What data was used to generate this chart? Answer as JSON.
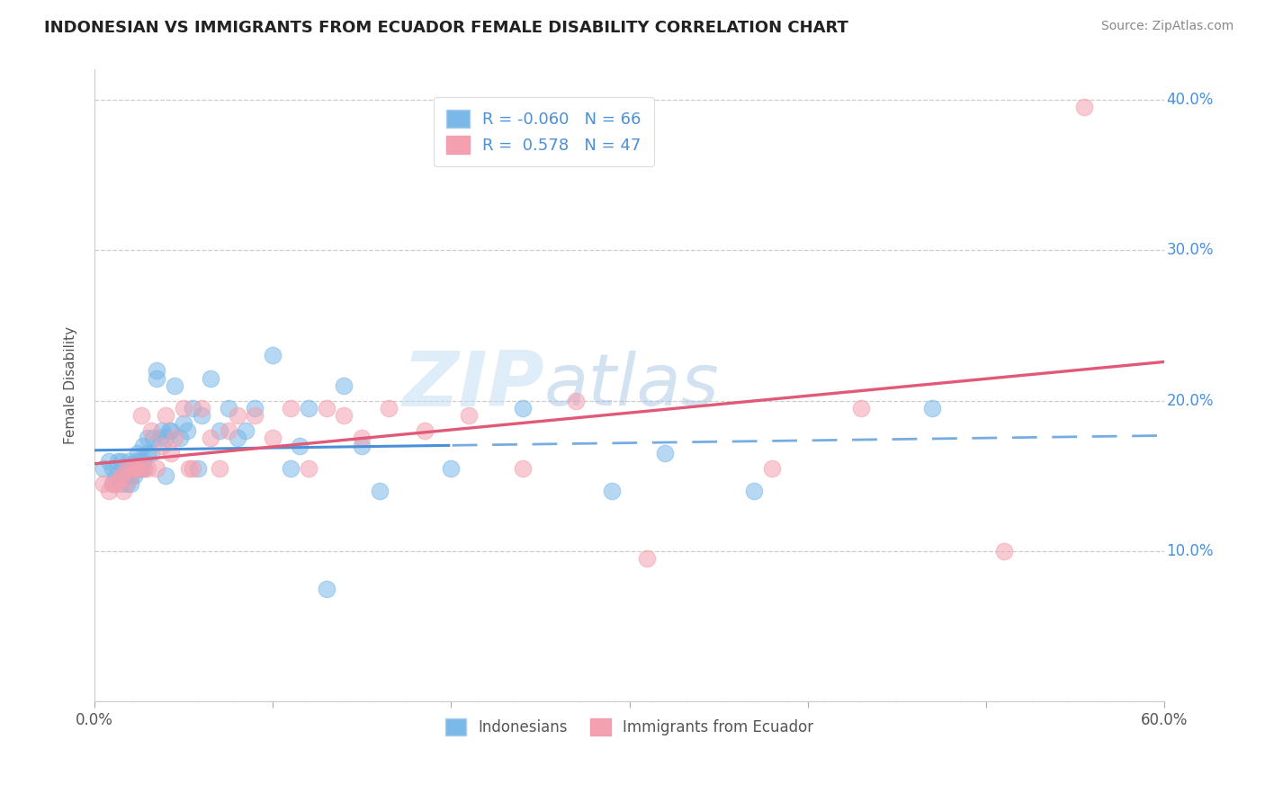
{
  "title": "INDONESIAN VS IMMIGRANTS FROM ECUADOR FEMALE DISABILITY CORRELATION CHART",
  "source": "Source: ZipAtlas.com",
  "ylabel": "Female Disability",
  "x_min": 0.0,
  "x_max": 0.6,
  "y_min": 0.0,
  "y_max": 0.42,
  "x_ticks": [
    0.0,
    0.1,
    0.2,
    0.3,
    0.4,
    0.5,
    0.6
  ],
  "y_ticks": [
    0.0,
    0.1,
    0.2,
    0.3,
    0.4
  ],
  "indonesian_R": -0.06,
  "indonesian_N": 66,
  "ecuador_R": 0.578,
  "ecuador_N": 47,
  "indonesian_color": "#7ab8e8",
  "ecuador_color": "#f4a0b0",
  "indonesian_line_color": "#4a90d9",
  "ecuador_line_color": "#e05a78",
  "watermark_zip": "ZIP",
  "watermark_atlas": "atlas",
  "legend_label_1": "Indonesians",
  "legend_label_2": "Immigrants from Ecuador",
  "indonesian_scatter_x": [
    0.005,
    0.008,
    0.01,
    0.01,
    0.012,
    0.013,
    0.014,
    0.015,
    0.015,
    0.016,
    0.017,
    0.018,
    0.018,
    0.019,
    0.02,
    0.02,
    0.02,
    0.022,
    0.022,
    0.023,
    0.024,
    0.025,
    0.025,
    0.026,
    0.027,
    0.027,
    0.028,
    0.03,
    0.03,
    0.032,
    0.033,
    0.035,
    0.035,
    0.037,
    0.038,
    0.04,
    0.04,
    0.042,
    0.043,
    0.045,
    0.048,
    0.05,
    0.052,
    0.055,
    0.058,
    0.06,
    0.065,
    0.07,
    0.075,
    0.08,
    0.085,
    0.09,
    0.1,
    0.11,
    0.115,
    0.12,
    0.13,
    0.14,
    0.15,
    0.16,
    0.2,
    0.24,
    0.29,
    0.32,
    0.37,
    0.47
  ],
  "indonesian_scatter_y": [
    0.155,
    0.16,
    0.155,
    0.145,
    0.15,
    0.16,
    0.15,
    0.145,
    0.16,
    0.15,
    0.155,
    0.155,
    0.145,
    0.16,
    0.145,
    0.15,
    0.155,
    0.15,
    0.155,
    0.16,
    0.165,
    0.155,
    0.16,
    0.155,
    0.17,
    0.16,
    0.155,
    0.175,
    0.165,
    0.165,
    0.175,
    0.215,
    0.22,
    0.175,
    0.18,
    0.175,
    0.15,
    0.18,
    0.18,
    0.21,
    0.175,
    0.185,
    0.18,
    0.195,
    0.155,
    0.19,
    0.215,
    0.18,
    0.195,
    0.175,
    0.18,
    0.195,
    0.23,
    0.155,
    0.17,
    0.195,
    0.075,
    0.21,
    0.17,
    0.14,
    0.155,
    0.195,
    0.14,
    0.165,
    0.14,
    0.195
  ],
  "ecuador_scatter_x": [
    0.005,
    0.008,
    0.01,
    0.012,
    0.014,
    0.015,
    0.016,
    0.018,
    0.019,
    0.02,
    0.022,
    0.023,
    0.025,
    0.026,
    0.028,
    0.03,
    0.032,
    0.035,
    0.038,
    0.04,
    0.043,
    0.045,
    0.05,
    0.053,
    0.055,
    0.06,
    0.065,
    0.07,
    0.075,
    0.08,
    0.09,
    0.1,
    0.11,
    0.12,
    0.13,
    0.14,
    0.15,
    0.165,
    0.185,
    0.21,
    0.24,
    0.27,
    0.31,
    0.38,
    0.43,
    0.51,
    0.555
  ],
  "ecuador_scatter_y": [
    0.145,
    0.14,
    0.145,
    0.145,
    0.148,
    0.15,
    0.14,
    0.155,
    0.148,
    0.155,
    0.155,
    0.155,
    0.155,
    0.19,
    0.155,
    0.155,
    0.18,
    0.155,
    0.17,
    0.19,
    0.165,
    0.175,
    0.195,
    0.155,
    0.155,
    0.195,
    0.175,
    0.155,
    0.18,
    0.19,
    0.19,
    0.175,
    0.195,
    0.155,
    0.195,
    0.19,
    0.175,
    0.195,
    0.18,
    0.19,
    0.155,
    0.2,
    0.095,
    0.155,
    0.195,
    0.1,
    0.395
  ]
}
